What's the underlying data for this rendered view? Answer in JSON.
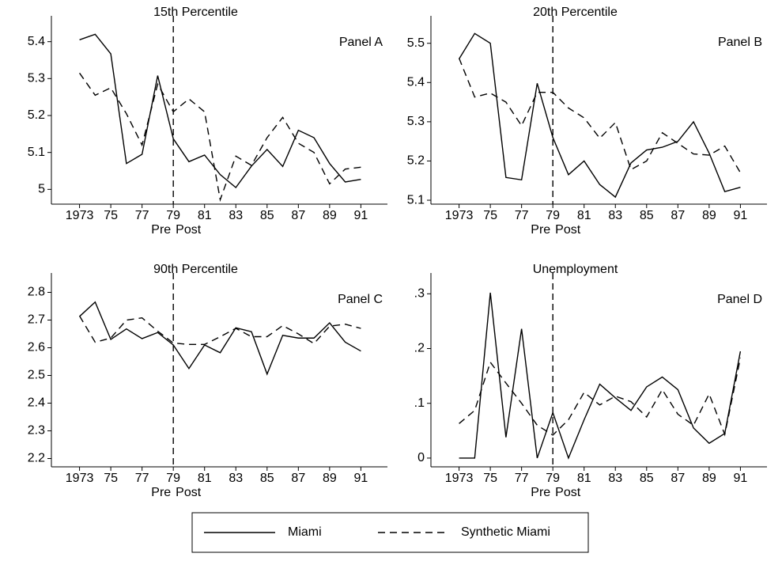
{
  "chart_data": [
    {
      "type": "line",
      "title": "15th Percentile",
      "panel_label": "Panel A",
      "pre_label": "Pre",
      "post_label": "Post",
      "vline": 1979,
      "x": [
        1973,
        1974,
        1975,
        1976,
        1977,
        1978,
        1979,
        1980,
        1981,
        1982,
        1983,
        1984,
        1985,
        1986,
        1987,
        1988,
        1989,
        1990,
        1991
      ],
      "xlim": [
        1971.2,
        1992.7
      ],
      "xticks": [
        1973,
        {
          "value": 1975,
          "label": "75"
        },
        {
          "value": 1977,
          "label": "77"
        },
        {
          "value": 1979,
          "label": "79"
        },
        {
          "value": 1981,
          "label": "81"
        },
        {
          "value": 1983,
          "label": "83"
        },
        {
          "value": 1985,
          "label": "85"
        },
        {
          "value": 1987,
          "label": "87"
        },
        {
          "value": 1989,
          "label": "89"
        },
        {
          "value": 1991,
          "label": "91"
        }
      ],
      "ylim": [
        4.96,
        5.47
      ],
      "yticks": [
        5,
        5.1,
        5.2,
        5.3,
        5.4
      ],
      "series": [
        {
          "name": "Miami",
          "color": "#000000",
          "style": "solid",
          "values": [
            5.405,
            5.42,
            5.367,
            5.07,
            5.095,
            5.308,
            5.137,
            5.075,
            5.093,
            5.04,
            5.005,
            5.063,
            5.108,
            5.062,
            5.16,
            5.14,
            5.07,
            5.02,
            5.027
          ]
        },
        {
          "name": "Synthetic Miami",
          "color": "#000000",
          "style": "dashed",
          "values": [
            5.315,
            5.255,
            5.275,
            5.205,
            5.12,
            5.285,
            5.21,
            5.245,
            5.21,
            4.972,
            5.09,
            5.065,
            5.14,
            5.195,
            5.125,
            5.1,
            5.015,
            5.055,
            5.06
          ]
        }
      ]
    },
    {
      "type": "line",
      "title": "20th Percentile",
      "panel_label": "Panel B",
      "pre_label": "Pre",
      "post_label": "Post",
      "vline": 1979,
      "x": [
        1973,
        1974,
        1975,
        1976,
        1977,
        1978,
        1979,
        1980,
        1981,
        1982,
        1983,
        1984,
        1985,
        1986,
        1987,
        1988,
        1989,
        1990,
        1991
      ],
      "xlim": [
        1971.2,
        1992.7
      ],
      "xticks": [
        1973,
        {
          "value": 1975,
          "label": "75"
        },
        {
          "value": 1977,
          "label": "77"
        },
        {
          "value": 1979,
          "label": "79"
        },
        {
          "value": 1981,
          "label": "81"
        },
        {
          "value": 1983,
          "label": "83"
        },
        {
          "value": 1985,
          "label": "85"
        },
        {
          "value": 1987,
          "label": "87"
        },
        {
          "value": 1989,
          "label": "89"
        },
        {
          "value": 1991,
          "label": "91"
        }
      ],
      "ylim": [
        5.09,
        5.57
      ],
      "yticks": [
        5.1,
        5.2,
        5.3,
        5.4,
        5.5
      ],
      "series": [
        {
          "name": "Miami",
          "color": "#000000",
          "style": "solid",
          "values": [
            5.46,
            5.525,
            5.5,
            5.158,
            5.152,
            5.398,
            5.26,
            5.165,
            5.2,
            5.14,
            5.108,
            5.195,
            5.228,
            5.235,
            5.25,
            5.3,
            5.22,
            5.122,
            5.133
          ]
        },
        {
          "name": "Synthetic Miami",
          "color": "#000000",
          "style": "dashed",
          "values": [
            5.462,
            5.363,
            5.373,
            5.35,
            5.29,
            5.375,
            5.375,
            5.335,
            5.31,
            5.258,
            5.298,
            5.178,
            5.2,
            5.272,
            5.245,
            5.218,
            5.215,
            5.238,
            5.17
          ]
        }
      ]
    },
    {
      "type": "line",
      "title": "90th Percentile",
      "panel_label": "Panel C",
      "pre_label": "Pre",
      "post_label": "Post",
      "vline": 1979,
      "x": [
        1973,
        1974,
        1975,
        1976,
        1977,
        1978,
        1979,
        1980,
        1981,
        1982,
        1983,
        1984,
        1985,
        1986,
        1987,
        1988,
        1989,
        1990,
        1991
      ],
      "xlim": [
        1971.2,
        1992.7
      ],
      "xticks": [
        1973,
        {
          "value": 1975,
          "label": "75"
        },
        {
          "value": 1977,
          "label": "77"
        },
        {
          "value": 1979,
          "label": "79"
        },
        {
          "value": 1981,
          "label": "81"
        },
        {
          "value": 1983,
          "label": "83"
        },
        {
          "value": 1985,
          "label": "85"
        },
        {
          "value": 1987,
          "label": "87"
        },
        {
          "value": 1989,
          "label": "89"
        },
        {
          "value": 1991,
          "label": "91"
        }
      ],
      "ylim": [
        2.17,
        2.87
      ],
      "yticks": [
        2.2,
        2.3,
        2.4,
        2.5,
        2.6,
        2.7,
        2.8
      ],
      "series": [
        {
          "name": "Miami",
          "color": "#000000",
          "style": "solid",
          "values": [
            2.713,
            2.765,
            2.63,
            2.668,
            2.633,
            2.655,
            2.61,
            2.525,
            2.61,
            2.582,
            2.672,
            2.658,
            2.505,
            2.645,
            2.635,
            2.635,
            2.69,
            2.62,
            2.588
          ]
        },
        {
          "name": "Synthetic Miami",
          "color": "#000000",
          "style": "dashed",
          "values": [
            2.715,
            2.62,
            2.635,
            2.7,
            2.708,
            2.66,
            2.617,
            2.612,
            2.612,
            2.64,
            2.67,
            2.64,
            2.64,
            2.68,
            2.65,
            2.615,
            2.678,
            2.685,
            2.67
          ]
        }
      ]
    },
    {
      "type": "line",
      "title": "Unemployment",
      "panel_label": "Panel D",
      "pre_label": "Pre",
      "post_label": "Post",
      "vline": 1979,
      "x": [
        1973,
        1974,
        1975,
        1976,
        1977,
        1978,
        1979,
        1980,
        1981,
        1982,
        1983,
        1984,
        1985,
        1986,
        1987,
        1988,
        1989,
        1990,
        1991
      ],
      "xlim": [
        1971.2,
        1992.7
      ],
      "xticks": [
        1973,
        {
          "value": 1975,
          "label": "75"
        },
        {
          "value": 1977,
          "label": "77"
        },
        {
          "value": 1979,
          "label": "79"
        },
        {
          "value": 1981,
          "label": "81"
        },
        {
          "value": 1983,
          "label": "83"
        },
        {
          "value": 1985,
          "label": "85"
        },
        {
          "value": 1987,
          "label": "87"
        },
        {
          "value": 1989,
          "label": "89"
        },
        {
          "value": 1991,
          "label": "91"
        }
      ],
      "ylim": [
        -0.016,
        0.338
      ],
      "yticks": [
        0,
        {
          "value": 0.1,
          "label": ".1"
        },
        {
          "value": 0.2,
          "label": ".2"
        },
        {
          "value": 0.3,
          "label": ".3"
        }
      ],
      "series": [
        {
          "name": "Miami",
          "color": "#000000",
          "style": "solid",
          "values": [
            0,
            0,
            0.302,
            0.038,
            0.236,
            0,
            0.083,
            0,
            0.07,
            0.135,
            0.11,
            0.087,
            0.13,
            0.148,
            0.125,
            0.055,
            0.027,
            0.045,
            0.195
          ]
        },
        {
          "name": "Synthetic Miami",
          "color": "#000000",
          "style": "dashed",
          "values": [
            0.063,
            0.087,
            0.175,
            0.137,
            0.1,
            0.06,
            0.042,
            0.07,
            0.12,
            0.097,
            0.113,
            0.103,
            0.075,
            0.125,
            0.08,
            0.06,
            0.117,
            0.043,
            0.183
          ]
        }
      ]
    }
  ]
}
